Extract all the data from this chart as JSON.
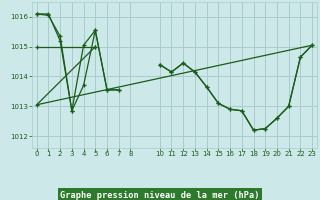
{
  "bg_color": "#cce8e8",
  "grid_color": "#aacccc",
  "line_color": "#1a5c1a",
  "title": "Graphe pression niveau de la mer (hPa)",
  "ylim": [
    1011.6,
    1016.5
  ],
  "yticks": [
    1012,
    1013,
    1014,
    1015,
    1016
  ],
  "title_bg": "#2d7a2d",
  "title_fg": "#ffffff",
  "series": [
    {
      "x": [
        0,
        1,
        2,
        3,
        4,
        5,
        6,
        7
      ],
      "y": [
        1016.1,
        1016.1,
        1015.35,
        1012.85,
        1013.7,
        1015.55,
        1013.55,
        1013.55
      ]
    },
    {
      "x": [
        0,
        1,
        2,
        3,
        4,
        5,
        6,
        7
      ],
      "y": [
        1016.1,
        1016.0,
        1015.35,
        1012.85,
        1015.05,
        1015.55,
        1013.55,
        1013.55
      ]
    },
    {
      "x": [
        0,
        5,
        10,
        11,
        12,
        13,
        14,
        15,
        16,
        17,
        18,
        19,
        20,
        21,
        22,
        23
      ],
      "y": [
        1013.05,
        1015.0,
        1014.4,
        1014.15,
        1014.45,
        1014.15,
        1013.65,
        1013.1,
        1012.9,
        1012.85,
        1012.2,
        1012.25,
        1012.6,
        1013.0,
        1014.65,
        1015.05
      ]
    },
    {
      "x": [
        0,
        23
      ],
      "y": [
        1013.05,
        1015.05
      ]
    },
    {
      "x": [
        0,
        10,
        11,
        12,
        13,
        14,
        15,
        16,
        17,
        18,
        19,
        20,
        21,
        22,
        23
      ],
      "y": [
        1015.0,
        1014.4,
        1014.15,
        1014.45,
        1014.15,
        1013.65,
        1013.1,
        1012.9,
        1012.85,
        1012.2,
        1012.25,
        1012.6,
        1013.0,
        1014.65,
        1015.05
      ]
    }
  ]
}
